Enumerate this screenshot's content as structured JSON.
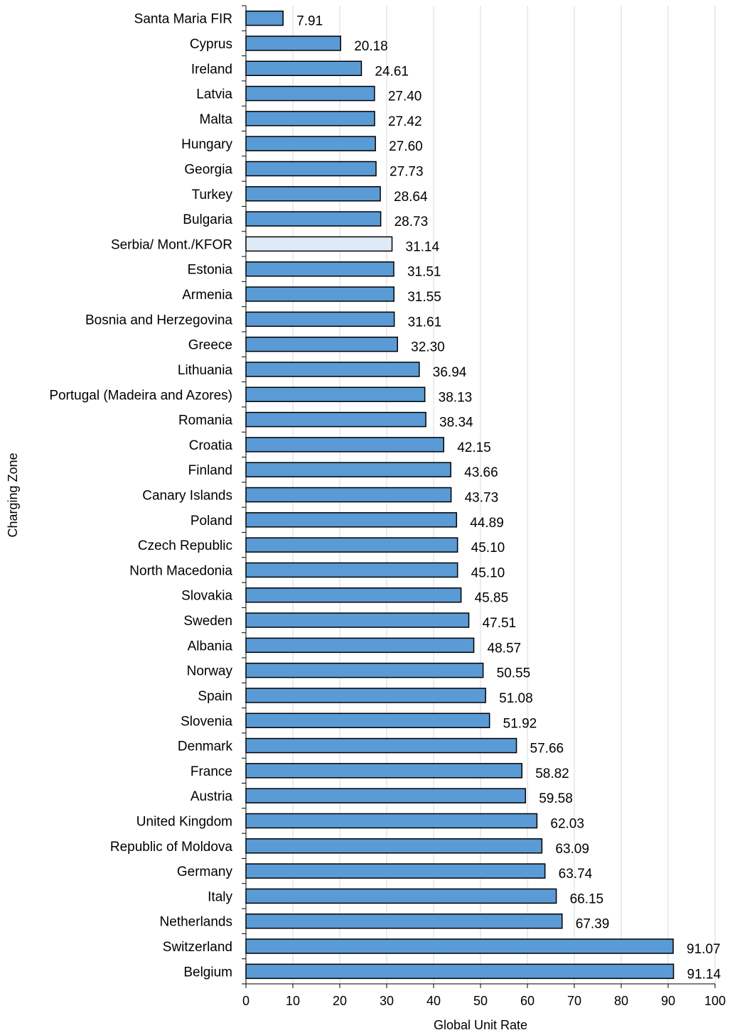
{
  "chart_data": {
    "type": "bar",
    "orientation": "horizontal",
    "title": "",
    "xlabel": "Global Unit Rate",
    "ylabel": "Charging Zone",
    "xlim": [
      0,
      100
    ],
    "xticks": [
      "0",
      "10",
      "20",
      "30",
      "40",
      "50",
      "60",
      "70",
      "80",
      "90",
      "100"
    ],
    "grid": "vertical",
    "colors": {
      "bar": "#5b9bd5",
      "highlight": "#deebf7",
      "border": "#000000",
      "grid": "#d9d9d9"
    },
    "categories": [
      "Santa Maria FIR",
      "Cyprus",
      "Ireland",
      "Latvia",
      "Malta",
      "Hungary",
      "Georgia",
      "Turkey",
      "Bulgaria",
      "Serbia/ Mont./KFOR",
      "Estonia",
      "Armenia",
      "Bosnia and Herzegovina",
      "Greece",
      "Lithuania",
      "Portugal (Madeira and Azores)",
      "Romania",
      "Croatia",
      "Finland",
      "Canary Islands",
      "Poland",
      "Czech Republic",
      "North Macedonia",
      "Slovakia",
      "Sweden",
      "Albania",
      "Norway",
      "Spain",
      "Slovenia",
      "Denmark",
      "France",
      "Austria",
      "United Kingdom",
      "Republic of Moldova",
      "Germany",
      "Italy",
      "Netherlands",
      "Switzerland",
      "Belgium"
    ],
    "values": [
      7.91,
      20.18,
      24.61,
      27.4,
      27.42,
      27.6,
      27.73,
      28.64,
      28.73,
      31.14,
      31.51,
      31.55,
      31.61,
      32.3,
      36.94,
      38.13,
      38.34,
      42.15,
      43.66,
      43.73,
      44.89,
      45.1,
      45.1,
      45.85,
      47.51,
      48.57,
      50.55,
      51.08,
      51.92,
      57.66,
      58.82,
      59.58,
      62.03,
      63.09,
      63.74,
      66.15,
      67.39,
      91.07,
      91.14
    ],
    "value_labels": [
      "7.91",
      "20.18",
      "24.61",
      "27.40",
      "27.42",
      "27.60",
      "27.73",
      "28.64",
      "28.73",
      "31.14",
      "31.51",
      "31.55",
      "31.61",
      "32.30",
      "36.94",
      "38.13",
      "38.34",
      "42.15",
      "43.66",
      "43.73",
      "44.89",
      "45.10",
      "45.10",
      "45.85",
      "47.51",
      "48.57",
      "50.55",
      "51.08",
      "51.92",
      "57.66",
      "58.82",
      "59.58",
      "62.03",
      "63.09",
      "63.74",
      "66.15",
      "67.39",
      "91.07",
      "91.14"
    ],
    "highlighted_category": "Serbia/ Mont./KFOR"
  }
}
